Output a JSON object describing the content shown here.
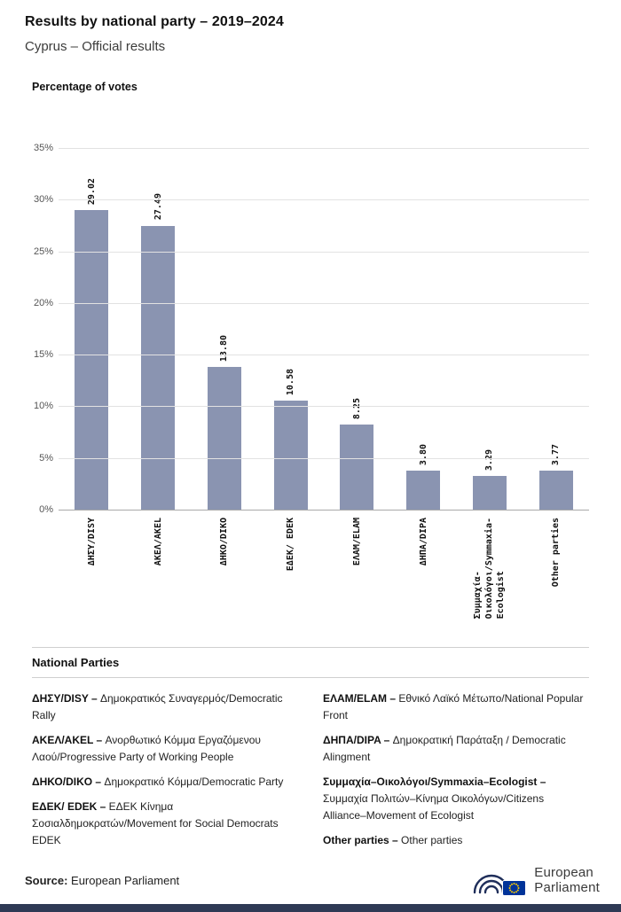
{
  "header": {
    "title": "Results by national party – 2019–2024",
    "subtitle": "Cyprus – Official results"
  },
  "chart": {
    "axis_title": "Percentage of votes"
  },
  "chart_data": {
    "type": "bar",
    "title": "Percentage of votes",
    "categories": [
      "ΔΗΣΥ/DISY",
      "ΑΚΕΛ/AKEL",
      "ΔΗΚΟ/DIKO",
      "ΕΔΕΚ/ EDEK",
      "ΕΛΑΜ/ELAM",
      "ΔΗΠΑ/DIPA",
      "Συμμαχία-\nΟικολόγοι/Symmaxia-\nEcologist",
      "Other parties"
    ],
    "values": [
      29.02,
      27.49,
      13.8,
      10.58,
      8.25,
      3.8,
      3.29,
      3.77
    ],
    "value_labels": [
      "29.02",
      "27.49",
      "13.80",
      "10.58",
      "8.25",
      "3.80",
      "3.29",
      "3.77"
    ],
    "xlabel": "",
    "ylabel": "Percentage of votes",
    "ylim": [
      0,
      35
    ],
    "yticks": [
      "0%",
      "5%",
      "10%",
      "15%",
      "20%",
      "25%",
      "30%",
      "35%"
    ],
    "grid": true,
    "legend_position": "none",
    "bar_color": "#8a94b1"
  },
  "legend": {
    "heading": "National Parties",
    "left": [
      {
        "name": "ΔΗΣΥ/DISY –",
        "desc": "Δημοκρατικός Συναγερμός/Democratic Rally"
      },
      {
        "name": "ΑΚΕΛ/AKEL  –",
        "desc": "Ανορθωτικό Κόμμα Εργαζόμενου Λαού/Progressive Party of Working People"
      },
      {
        "name": "ΔΗΚΟ/DIKO –",
        "desc": "Δημοκρατικό Κόμμα/Democratic Party"
      },
      {
        "name": "ΕΔΕΚ/ EDEK –",
        "desc": "ΕΔΕΚ Κίνημα Σοσιαλδημοκρατών/Movement for Social Democrats EDEK"
      }
    ],
    "right": [
      {
        "name": "ΕΛΑΜ/ELAM –",
        "desc": "Εθνικό Λαϊκό Μέτωπο/National Popular Front"
      },
      {
        "name": "ΔΗΠΑ/DIPA –",
        "desc": "Δημοκρατική Παράταξη / Democratic Alingment"
      },
      {
        "name": "Συμμαχία–Οικολόγοι/Symmaxia–Ecologist –",
        "desc": "Συμμαχία Πολιτών–Κίνημα Οικολόγων/Citizens Alliance–Movement of Ecologist"
      },
      {
        "name": "Other parties –",
        "desc": "Other parties"
      }
    ]
  },
  "footer": {
    "source_label": "Source:",
    "source_value": "European Parliament",
    "logo_line1": "European",
    "logo_line2": "Parliament"
  }
}
